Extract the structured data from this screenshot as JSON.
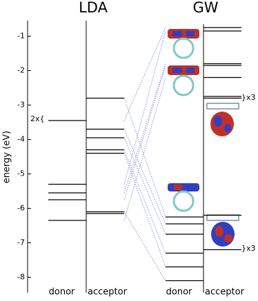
{
  "chart_data": {
    "type": "energy-levels",
    "y_label": "energy (eV)",
    "ylim": [
      -8.45,
      -0.55
    ],
    "yticks": [
      -1,
      -2,
      -3,
      -4,
      -5,
      -6,
      -7,
      -8
    ],
    "panels": [
      {
        "title": "LDA",
        "columns": [
          {
            "name": "donor",
            "levels": [
              -3.45,
              -5.3,
              -5.55,
              -5.75,
              -6.35
            ]
          },
          {
            "name": "acceptor",
            "levels": [
              -2.8,
              -3.7,
              -3.95,
              -4.3,
              -4.4,
              -6.1,
              -6.15
            ]
          }
        ]
      },
      {
        "title": "GW",
        "columns": [
          {
            "name": "donor",
            "levels": [
              -6.25,
              -6.45,
              -6.75,
              -7.3,
              -7.7,
              -8.1
            ]
          },
          {
            "name": "acceptor",
            "levels": [
              -0.75,
              -0.85,
              -1.8,
              -1.85,
              -2.2,
              -2.75,
              -2.8,
              -6.2,
              -7.2
            ]
          }
        ]
      }
    ],
    "annotations": [
      "2x{",
      "}x3",
      "}x3"
    ]
  }
}
